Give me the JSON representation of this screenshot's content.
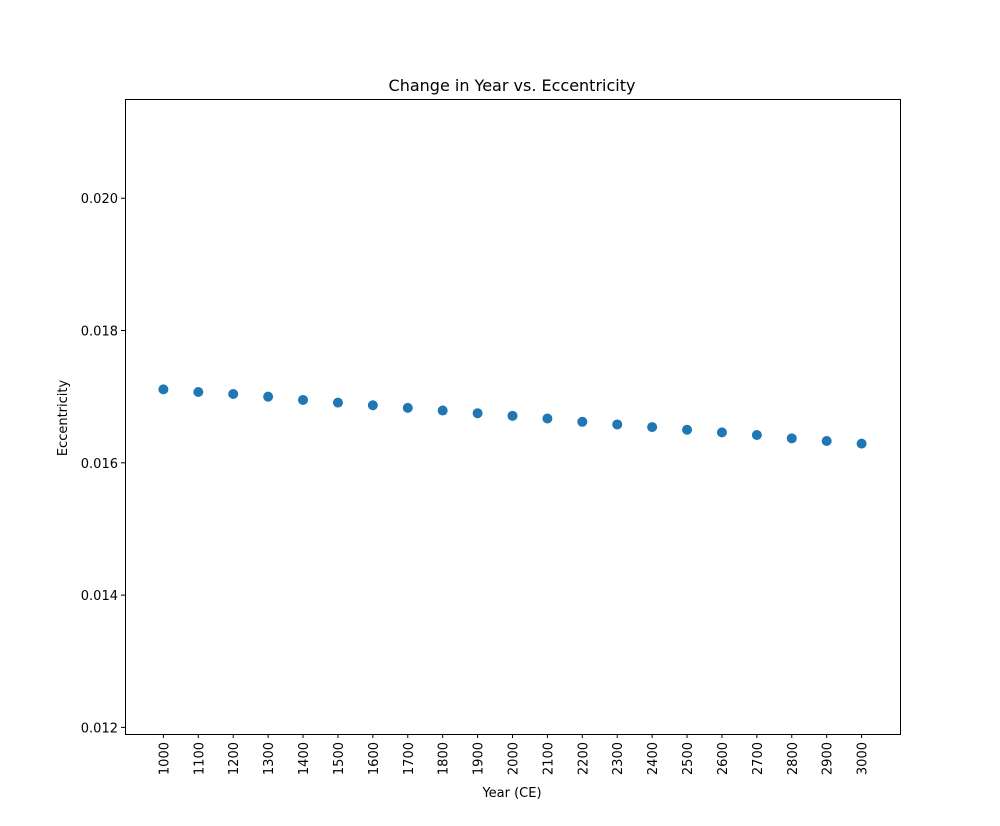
{
  "chart_data": {
    "type": "scatter",
    "title": "Change in Year vs. Eccentricity",
    "xlabel": "Year (CE)",
    "ylabel": "Eccentricity",
    "x": [
      1000,
      1100,
      1200,
      1300,
      1400,
      1500,
      1600,
      1700,
      1800,
      1900,
      2000,
      2100,
      2200,
      2300,
      2400,
      2500,
      2600,
      2700,
      2800,
      2900,
      3000
    ],
    "x_tick_labels": [
      "1000",
      "1100",
      "1200",
      "1300",
      "1400",
      "1500",
      "1600",
      "1700",
      "1800",
      "1900",
      "2000",
      "2100",
      "2200",
      "2300",
      "2400",
      "2500",
      "2600",
      "2700",
      "2800",
      "2900",
      "3000"
    ],
    "series": [
      {
        "values": [
          0.01711,
          0.01707,
          0.01704,
          0.017,
          0.01695,
          0.01691,
          0.01687,
          0.01683,
          0.01679,
          0.01675,
          0.01671,
          0.01667,
          0.01662,
          0.01658,
          0.01654,
          0.0165,
          0.01646,
          0.01642,
          0.01637,
          0.01633,
          0.01629
        ],
        "color": "#1f77b4"
      }
    ],
    "ylim": [
      0.0119,
      0.0215
    ],
    "xlim": [
      890,
      3110
    ],
    "y_ticks": [
      0.012,
      0.014,
      0.016,
      0.018,
      0.02
    ],
    "y_tick_labels": [
      "0.012",
      "0.014",
      "0.016",
      "0.018",
      "0.020"
    ],
    "grid": false,
    "legend": "none"
  }
}
